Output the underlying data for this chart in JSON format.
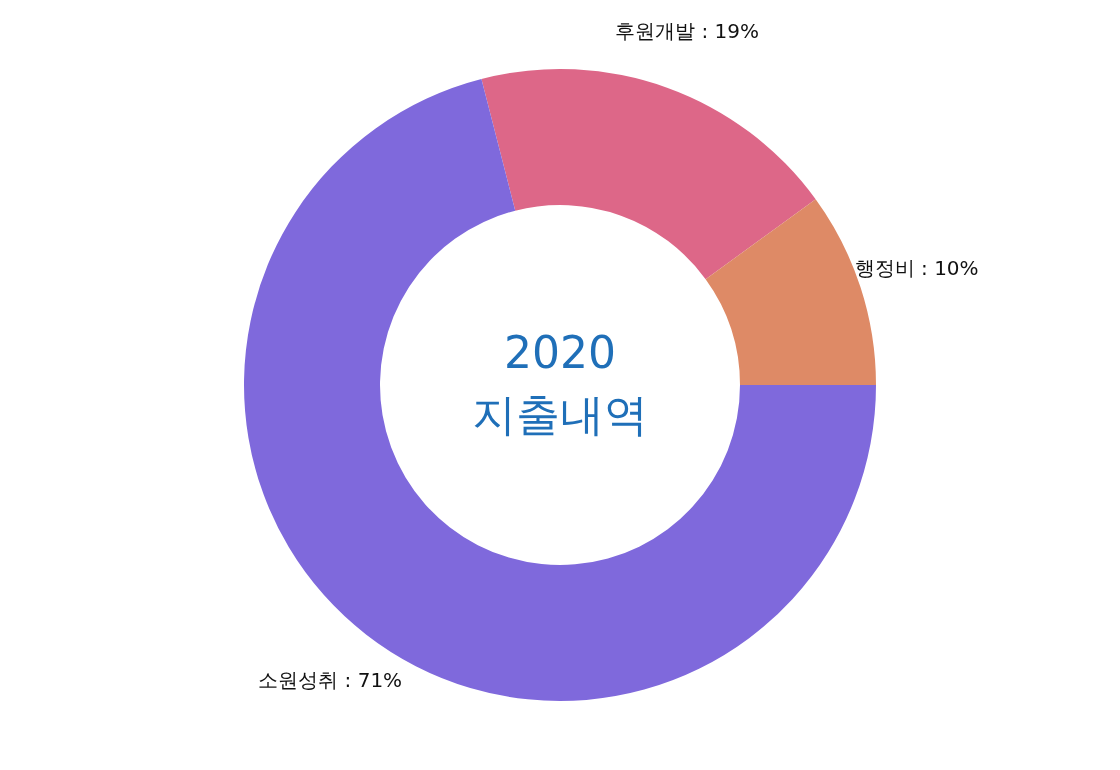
{
  "chart_data": {
    "type": "donut",
    "title": "2020\n지출내역",
    "categories": [
      "후원개발",
      "행정비",
      "소원성취"
    ],
    "values": [
      19,
      10,
      71
    ],
    "colors": [
      "#dd6788",
      "#de8a66",
      "#7f69dc"
    ],
    "value_labels": [
      "19%",
      "10%",
      "71%"
    ]
  }
}
